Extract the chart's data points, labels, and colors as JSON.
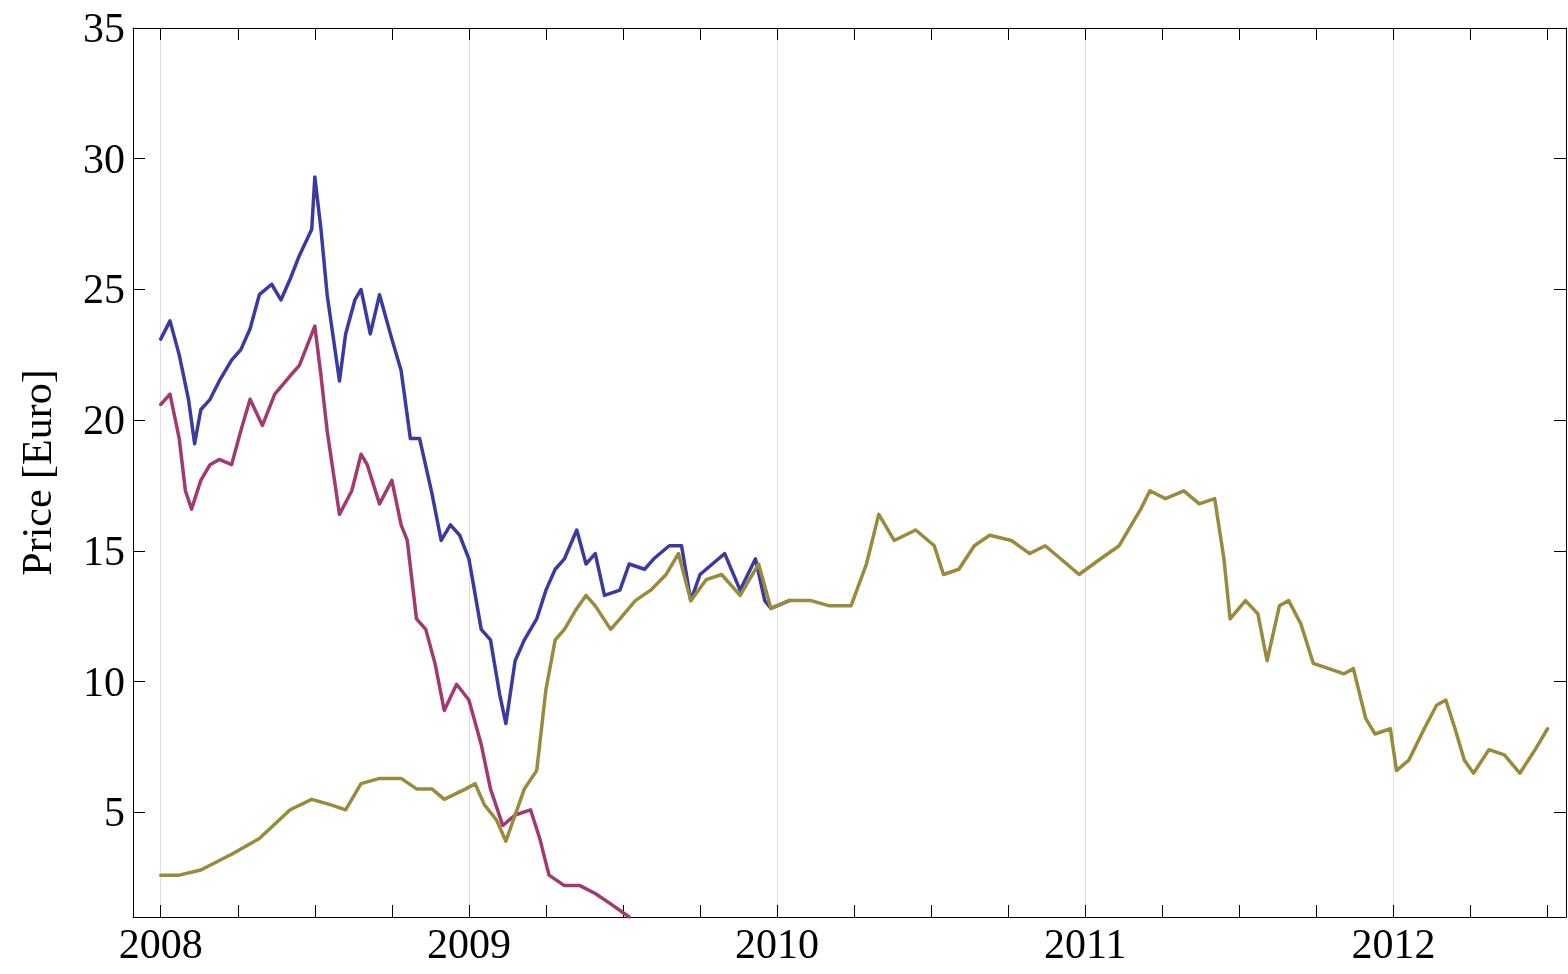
{
  "chart_data": {
    "type": "line",
    "ylabel": "Price [Euro]",
    "xlim": [
      2007.91,
      2012.56
    ],
    "ylim": [
      1,
      35
    ],
    "xticks": [
      2008,
      {
        "value": 2008.25,
        "label": null
      },
      {
        "value": 2008.5,
        "label": null
      },
      {
        "value": 2008.75,
        "label": null
      },
      2009,
      {
        "value": 2009.25,
        "label": null
      },
      {
        "value": 2009.5,
        "label": null
      },
      {
        "value": 2009.75,
        "label": null
      },
      2010,
      {
        "value": 2010.25,
        "label": null
      },
      {
        "value": 2010.5,
        "label": null
      },
      {
        "value": 2010.75,
        "label": null
      },
      2011,
      {
        "value": 2011.25,
        "label": null
      },
      {
        "value": 2011.5,
        "label": null
      },
      {
        "value": 2011.75,
        "label": null
      },
      2012,
      {
        "value": 2012.25,
        "label": null
      },
      {
        "value": 2012.5,
        "label": null
      }
    ],
    "yticks": [
      5,
      10,
      15,
      20,
      25,
      30,
      35
    ],
    "grid": "x",
    "series": [
      {
        "color": "#a03a70",
        "x": [
          2008.0,
          2008.03,
          2008.06,
          2008.08,
          2008.1,
          2008.13,
          2008.16,
          2008.19,
          2008.23,
          2008.26,
          2008.29,
          2008.33,
          2008.37,
          2008.42,
          2008.45,
          2008.5,
          2008.52,
          2008.54,
          2008.58,
          2008.62,
          2008.65,
          2008.67,
          2008.71,
          2008.75,
          2008.78,
          2008.8,
          2008.83,
          2008.86,
          2008.89,
          2008.92,
          2008.96,
          2009.0,
          2009.04,
          2009.07,
          2009.11,
          2009.15,
          2009.2,
          2009.23,
          2009.26,
          2009.31,
          2009.36,
          2009.41,
          2009.46,
          2009.52
        ],
        "values": [
          20.6,
          21.0,
          19.3,
          17.3,
          16.6,
          17.7,
          18.3,
          18.5,
          18.3,
          19.6,
          20.8,
          19.8,
          21.0,
          21.7,
          22.1,
          23.6,
          21.7,
          19.6,
          16.4,
          17.3,
          18.7,
          18.3,
          16.8,
          17.7,
          16.0,
          15.4,
          12.4,
          12.0,
          10.7,
          8.9,
          9.9,
          9.3,
          7.6,
          5.9,
          4.5,
          4.9,
          5.1,
          4.0,
          2.6,
          2.2,
          2.2,
          1.9,
          1.5,
          1.0
        ]
      },
      {
        "color": "#3a3aa0",
        "x": [
          2008.0,
          2008.03,
          2008.06,
          2008.09,
          2008.11,
          2008.13,
          2008.16,
          2008.19,
          2008.23,
          2008.26,
          2008.29,
          2008.32,
          2008.36,
          2008.39,
          2008.42,
          2008.45,
          2008.49,
          2008.5,
          2008.52,
          2008.54,
          2008.58,
          2008.6,
          2008.63,
          2008.65,
          2008.68,
          2008.71,
          2008.75,
          2008.78,
          2008.81,
          2008.84,
          2008.88,
          2008.91,
          2008.94,
          2008.97,
          2009.0,
          2009.04,
          2009.07,
          2009.1,
          2009.12,
          2009.15,
          2009.18,
          2009.22,
          2009.25,
          2009.28,
          2009.31,
          2009.35,
          2009.38,
          2009.41,
          2009.44,
          2009.49,
          2009.52,
          2009.57,
          2009.6,
          2009.65,
          2009.69,
          2009.72,
          2009.75,
          2009.79,
          2009.83,
          2009.88,
          2009.93,
          2009.96,
          2009.98,
          2010.04
        ],
        "values": [
          23.1,
          23.8,
          22.5,
          20.8,
          19.1,
          20.4,
          20.8,
          21.5,
          22.3,
          22.7,
          23.5,
          24.8,
          25.2,
          24.6,
          25.4,
          26.3,
          27.3,
          29.3,
          27.3,
          24.8,
          21.5,
          23.3,
          24.6,
          25.0,
          23.3,
          24.8,
          23.1,
          21.9,
          19.3,
          19.3,
          17.2,
          15.4,
          16.0,
          15.6,
          14.7,
          12.0,
          11.6,
          9.5,
          8.4,
          10.8,
          11.6,
          12.4,
          13.5,
          14.3,
          14.7,
          15.8,
          14.5,
          14.9,
          13.3,
          13.5,
          14.5,
          14.3,
          14.7,
          15.2,
          15.2,
          13.1,
          14.1,
          14.5,
          14.9,
          13.5,
          14.7,
          13.1,
          12.8,
          13.1
        ]
      },
      {
        "color": "#9a8a3c",
        "x": [
          2008.0,
          2008.06,
          2008.13,
          2008.23,
          2008.32,
          2008.42,
          2008.49,
          2008.55,
          2008.6,
          2008.65,
          2008.71,
          2008.78,
          2008.83,
          2008.88,
          2008.92,
          2008.99,
          2009.02,
          2009.05,
          2009.09,
          2009.12,
          2009.15,
          2009.18,
          2009.22,
          2009.25,
          2009.28,
          2009.31,
          2009.35,
          2009.38,
          2009.41,
          2009.46,
          2009.49,
          2009.54,
          2009.59,
          2009.64,
          2009.68,
          2009.72,
          2009.77,
          2009.82,
          2009.88,
          2009.94,
          2009.98,
          2010.04,
          2010.11,
          2010.17,
          2010.24,
          2010.29,
          2010.33,
          2010.38,
          2010.45,
          2010.51,
          2010.54,
          2010.59,
          2010.64,
          2010.69,
          2010.76,
          2010.82,
          2010.87,
          2010.92,
          2010.98,
          2011.05,
          2011.11,
          2011.18,
          2011.21,
          2011.26,
          2011.32,
          2011.37,
          2011.42,
          2011.45,
          2011.47,
          2011.52,
          2011.56,
          2011.59,
          2011.63,
          2011.66,
          2011.7,
          2011.74,
          2011.79,
          2011.84,
          2011.87,
          2011.91,
          2011.94,
          2011.99,
          2012.01,
          2012.05,
          2012.1,
          2012.14,
          2012.17,
          2012.2,
          2012.23,
          2012.26,
          2012.31,
          2012.36,
          2012.41,
          2012.46,
          2012.5
        ],
        "values": [
          2.6,
          2.6,
          2.8,
          3.4,
          4.0,
          5.1,
          5.5,
          5.3,
          5.1,
          6.1,
          6.3,
          6.3,
          5.9,
          5.9,
          5.5,
          5.9,
          6.1,
          5.3,
          4.7,
          3.9,
          4.9,
          5.9,
          6.6,
          9.7,
          11.6,
          12.0,
          12.8,
          13.3,
          12.9,
          12.0,
          12.4,
          13.1,
          13.5,
          14.1,
          14.9,
          13.1,
          13.9,
          14.1,
          13.3,
          14.5,
          12.8,
          13.1,
          13.1,
          12.9,
          12.9,
          14.5,
          16.4,
          15.4,
          15.8,
          15.2,
          14.1,
          14.3,
          15.2,
          15.6,
          15.4,
          14.9,
          15.2,
          14.7,
          14.1,
          14.7,
          15.2,
          16.6,
          17.3,
          17.0,
          17.3,
          16.8,
          17.0,
          14.7,
          12.4,
          13.1,
          12.6,
          10.8,
          12.9,
          13.1,
          12.2,
          10.7,
          10.5,
          10.3,
          10.5,
          8.6,
          8.0,
          8.2,
          6.6,
          7.0,
          8.2,
          9.1,
          9.3,
          8.2,
          7.0,
          6.5,
          7.4,
          7.2,
          6.5,
          7.4,
          8.2
        ]
      }
    ]
  }
}
